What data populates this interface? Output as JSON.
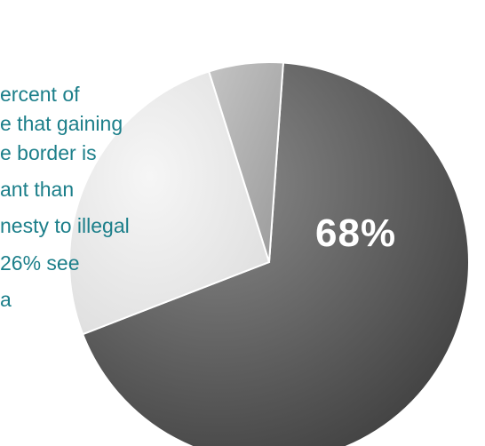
{
  "colors": {
    "slice_main": "#575757",
    "slice_light": "#ececec",
    "slice_mid": "#b4b4b4",
    "caption": "#1c7f8a"
  },
  "caption": {
    "lines": [
      "ercent of",
      "e that gaining",
      "e border is",
      "ant than",
      "nesty to illegal",
      "26% see",
      "a"
    ]
  },
  "chart_data": {
    "type": "pie",
    "slices": [
      {
        "label": "68%",
        "value": 68
      },
      {
        "label": "",
        "value": 26
      },
      {
        "label": "",
        "value": 6
      }
    ]
  }
}
